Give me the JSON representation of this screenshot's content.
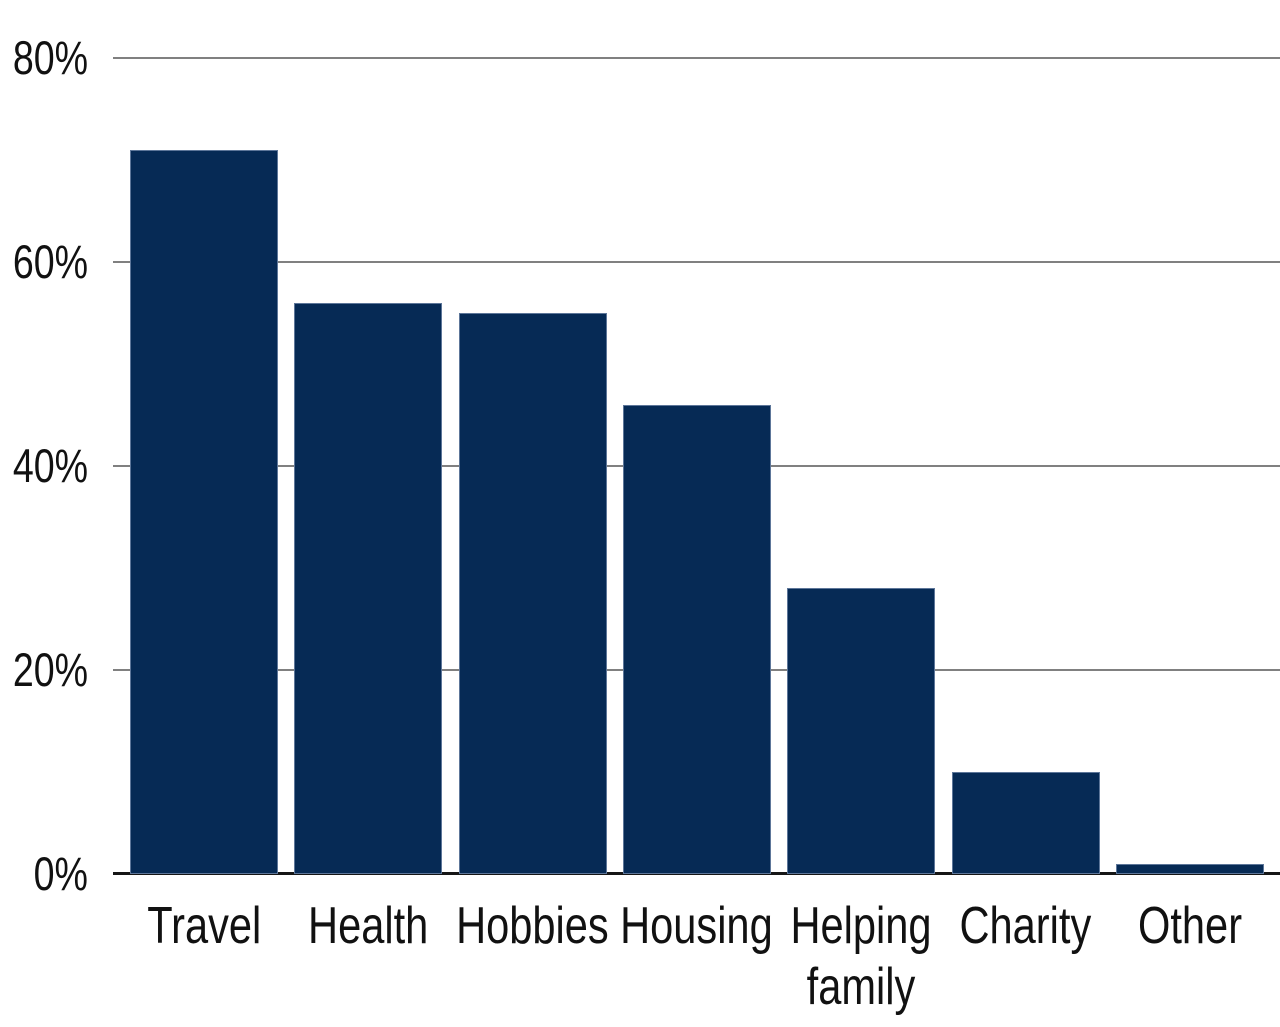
{
  "chart_data": {
    "type": "bar",
    "title": "",
    "xlabel": "",
    "ylabel": "",
    "categories": [
      "Travel",
      "Health",
      "Hobbies",
      "Housing",
      "Helping family",
      "Charity",
      "Other"
    ],
    "values": [
      71,
      56,
      55,
      46,
      28,
      10,
      1
    ],
    "unit": "%",
    "ylim": [
      0,
      80
    ],
    "yticks": [
      0,
      20,
      40,
      60,
      80
    ],
    "ytick_labels": [
      "0%",
      "20%",
      "40%",
      "60%",
      "80%"
    ],
    "grid": true,
    "legend": "none",
    "colors": {
      "bar_fill": "#062a55",
      "bar_edge": "#8ca0be",
      "gridline": "#808080",
      "axis_line": "#161616",
      "text": "#111111",
      "background": "#ffffff"
    }
  }
}
